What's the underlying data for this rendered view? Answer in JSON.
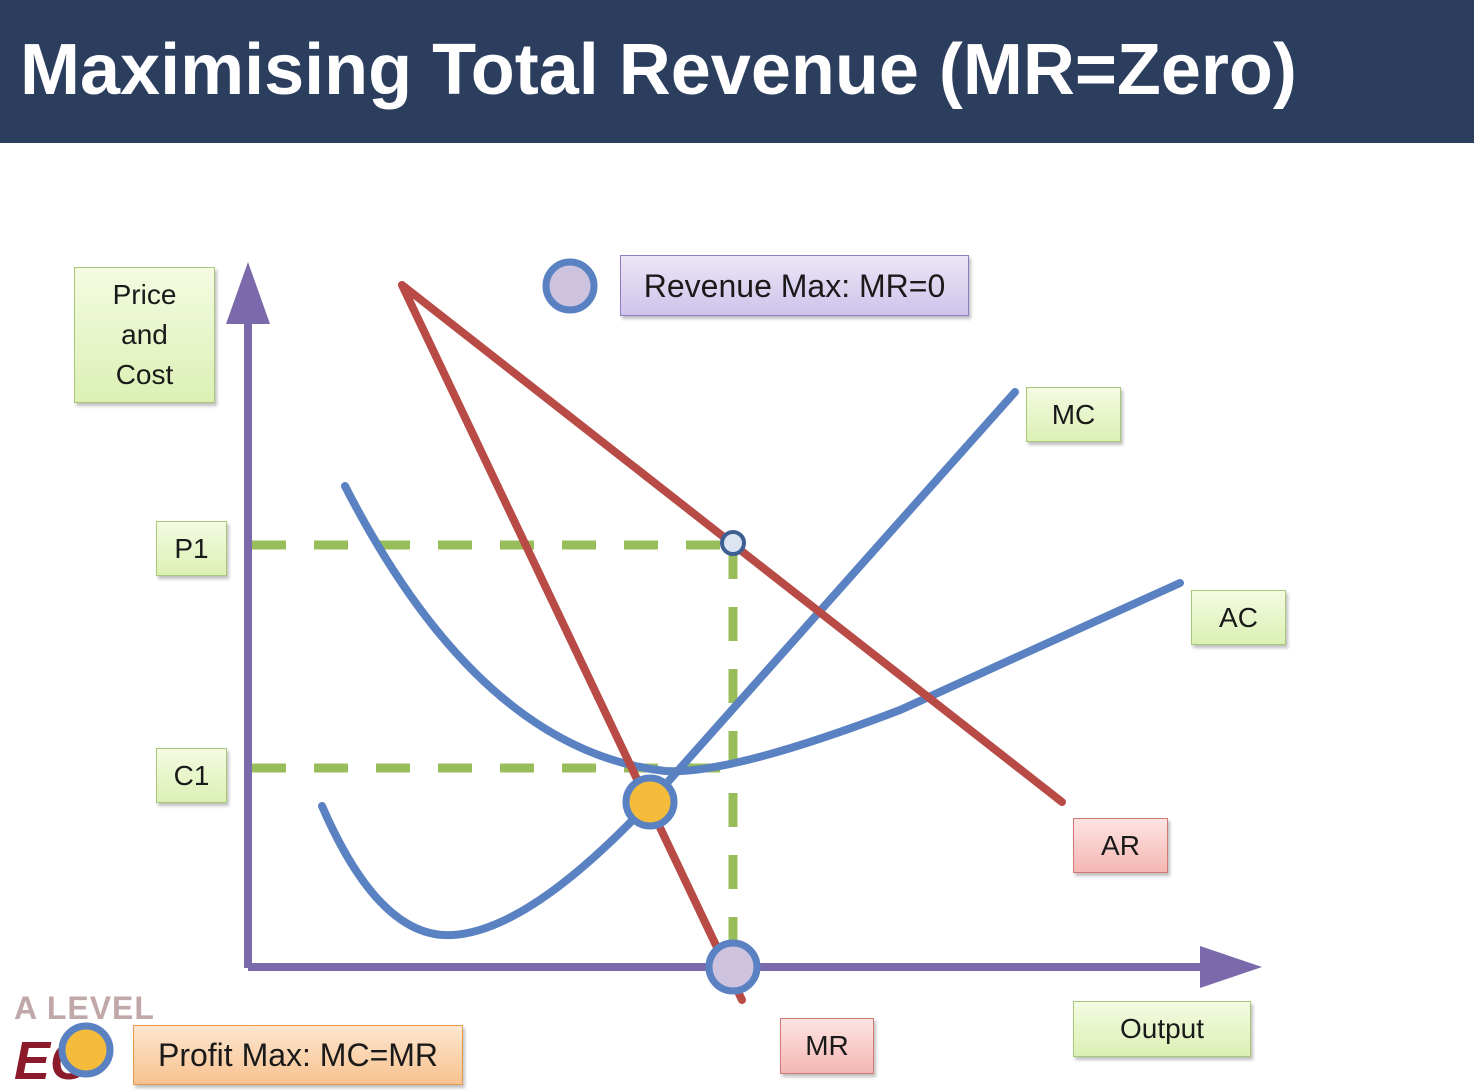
{
  "title": "Maximising Total Revenue (MR=Zero)",
  "labels": {
    "y_axis": [
      "Price",
      "and",
      "Cost"
    ],
    "x_axis": "Output",
    "p1": "P1",
    "c1": "C1",
    "mc": "MC",
    "ac": "AC",
    "ar": "AR",
    "mr": "MR"
  },
  "legend": {
    "revenue_max": "Revenue Max: MR=0",
    "profit_max": "Profit Max: MC=MR"
  },
  "logo": {
    "line1": "A LEVEL",
    "line2": "EC"
  },
  "colors": {
    "title_bg": "#2c3e5e",
    "axis": "#7b6aab",
    "cost_curves": "#5a82c2",
    "revenue_curves": "#b84b45",
    "guide_lines": "#97be5a",
    "profit_max_marker": "#f5bc3c",
    "revenue_max_marker": "#cdc3df"
  }
}
